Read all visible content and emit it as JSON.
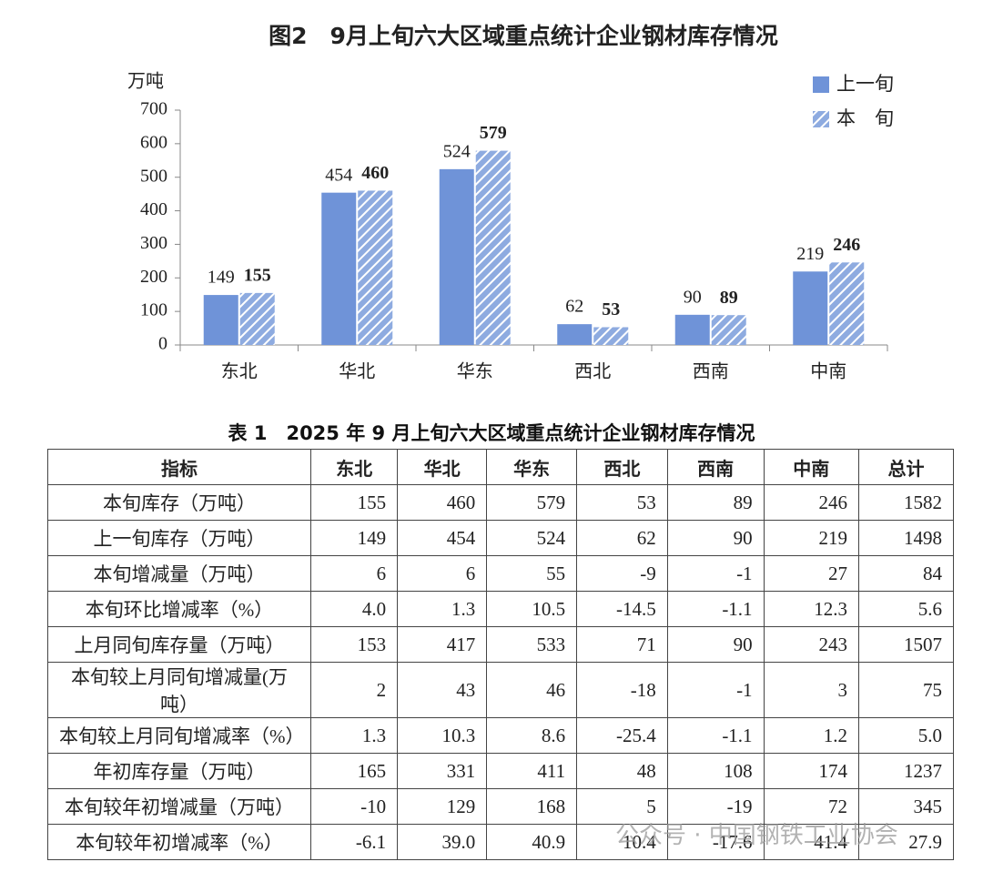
{
  "chart_data": {
    "type": "bar",
    "title": "图2　9月上旬六大区域重点统计企业钢材库存情况",
    "y_label": "万吨",
    "categories": [
      "东北",
      "华北",
      "华东",
      "西北",
      "西南",
      "中南"
    ],
    "series": [
      {
        "name": "上一旬",
        "color": "#6f93d8",
        "values": [
          149,
          454,
          524,
          62,
          90,
          219
        ]
      },
      {
        "name": "本　旬",
        "color": "#8eabe0",
        "pattern": "hatch",
        "values": [
          155,
          460,
          579,
          53,
          89,
          246
        ]
      }
    ],
    "ylim": [
      0,
      700
    ],
    "yticks": [
      0,
      100,
      200,
      300,
      400,
      500,
      600,
      700
    ],
    "legend": "top-right"
  },
  "table": {
    "title": "表 1　2025 年 9 月上旬六大区域重点统计企业钢材库存情况",
    "header": [
      "指标",
      "东北",
      "华北",
      "华东",
      "西北",
      "西南",
      "中南",
      "总计"
    ],
    "rows": [
      [
        "本旬库存（万吨）",
        "155",
        "460",
        "579",
        "53",
        "89",
        "246",
        "1582"
      ],
      [
        "上一旬库存（万吨）",
        "149",
        "454",
        "524",
        "62",
        "90",
        "219",
        "1498"
      ],
      [
        "本旬增减量（万吨）",
        "6",
        "6",
        "55",
        "-9",
        "-1",
        "27",
        "84"
      ],
      [
        "本旬环比增减率（%）",
        "4.0",
        "1.3",
        "10.5",
        "-14.5",
        "-1.1",
        "12.3",
        "5.6"
      ],
      [
        "上月同旬库存量（万吨）",
        "153",
        "417",
        "533",
        "71",
        "90",
        "243",
        "1507"
      ],
      [
        "本旬较上月同旬增减量(万吨）",
        "2",
        "43",
        "46",
        "-18",
        "-1",
        "3",
        "75"
      ],
      [
        "本旬较上月同旬增减率（%）",
        "1.3",
        "10.3",
        "8.6",
        "-25.4",
        "-1.1",
        "1.2",
        "5.0"
      ],
      [
        "年初库存量（万吨）",
        "165",
        "331",
        "411",
        "48",
        "108",
        "174",
        "1237"
      ],
      [
        "本旬较年初增减量（万吨）",
        "-10",
        "129",
        "168",
        "5",
        "-19",
        "72",
        "345"
      ],
      [
        "本旬较年初增减率（%）",
        "-6.1",
        "39.0",
        "40.9",
        "10.4",
        "-17.6",
        "41.4",
        "27.9"
      ]
    ]
  },
  "watermark": "公众号 · 中国钢铁工业协会"
}
